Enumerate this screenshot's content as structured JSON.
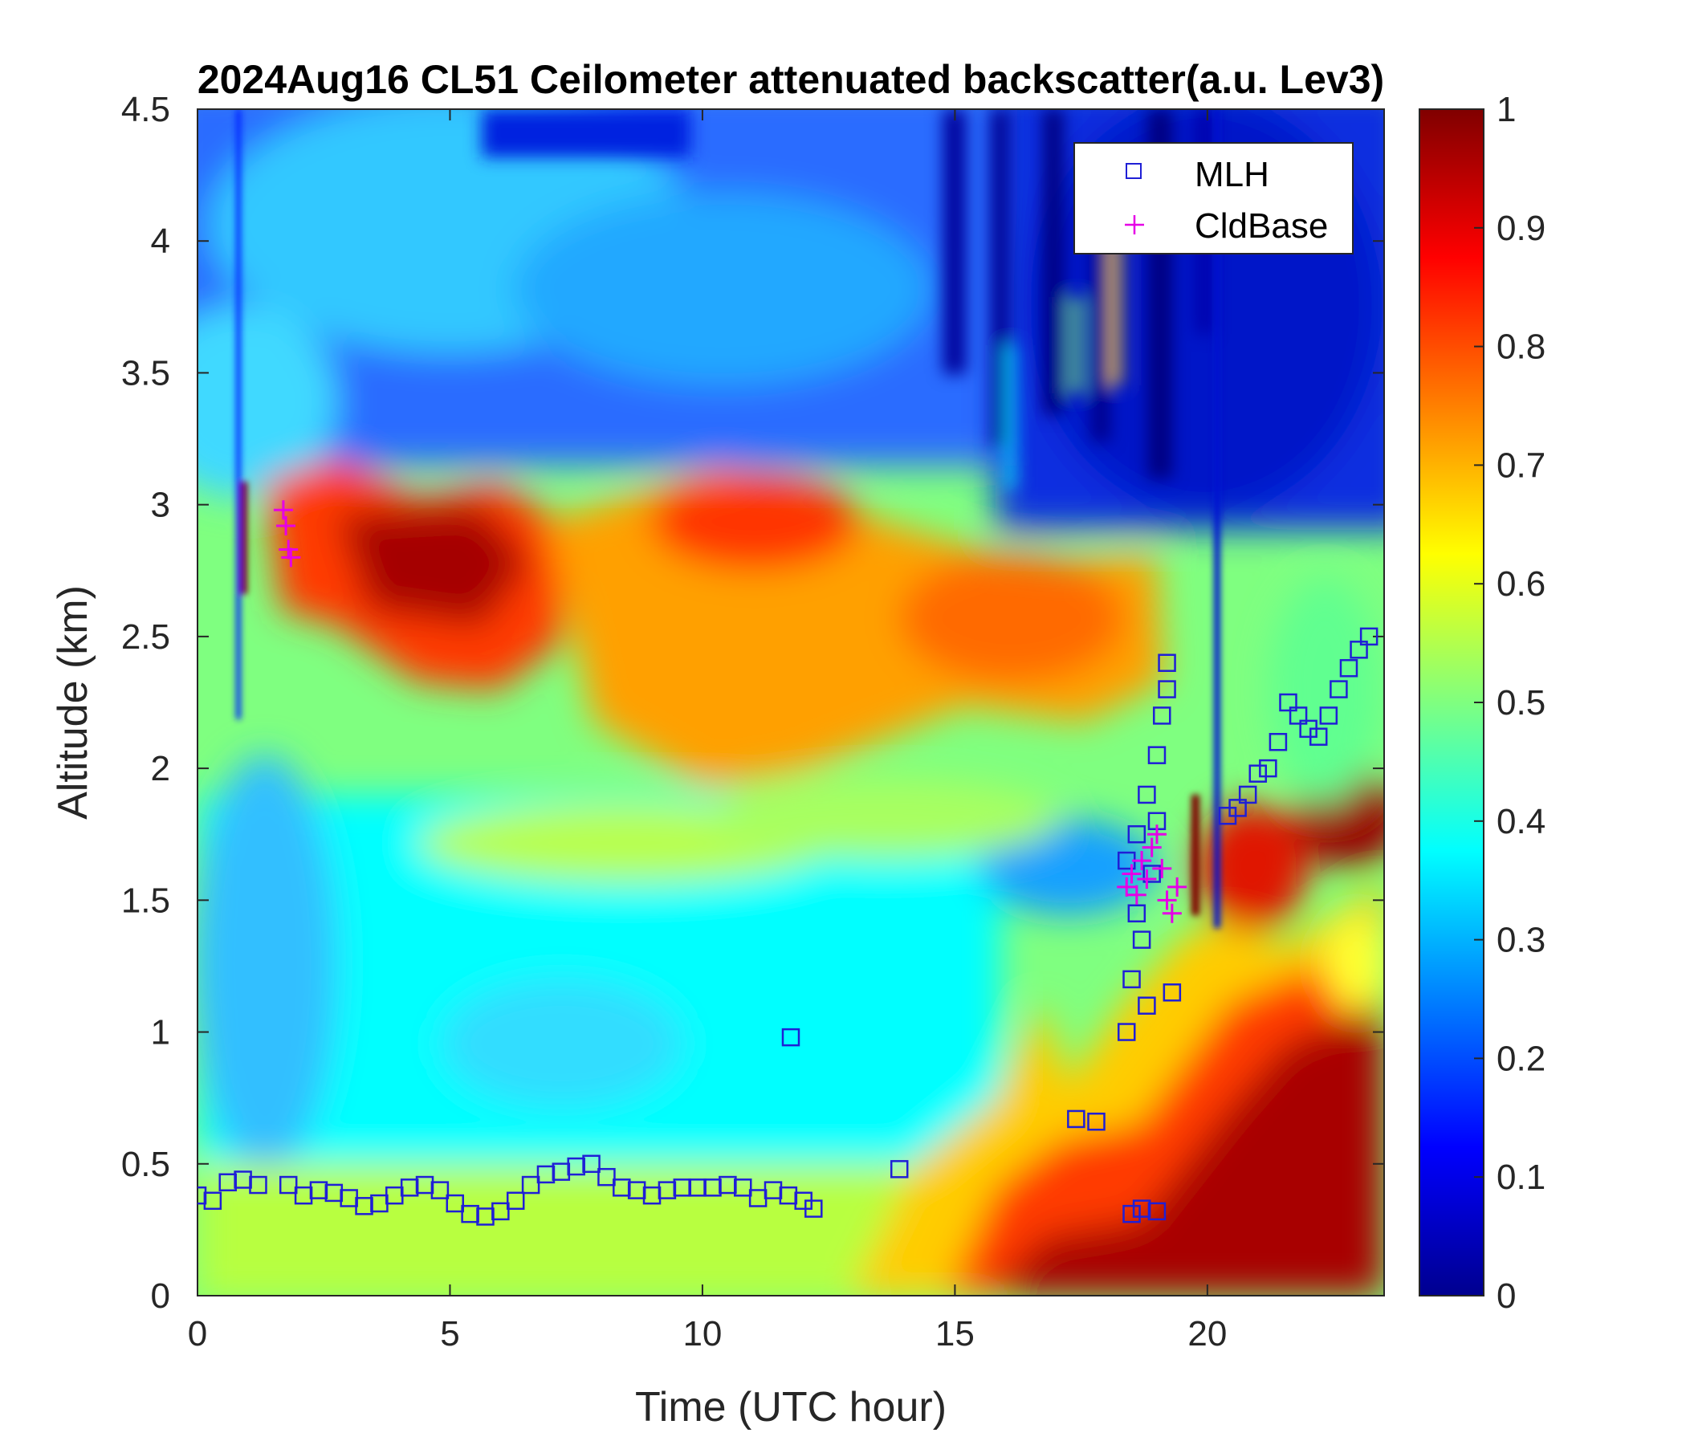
{
  "chart_data": {
    "type": "heatmap",
    "title": "2024Aug16 CL51 Ceilometer attenuated backscatter(a.u. Lev3)",
    "xlabel": "Time (UTC hour)",
    "ylabel": "Altitude (km)",
    "xlim": [
      0,
      23.5
    ],
    "ylim": [
      0,
      4.5
    ],
    "x_ticks": [
      "0",
      "5",
      "10",
      "15",
      "20"
    ],
    "x_tick_values": [
      0,
      5,
      10,
      15,
      20
    ],
    "y_ticks": [
      "0",
      "0.5",
      "1",
      "1.5",
      "2",
      "2.5",
      "3",
      "3.5",
      "4",
      "4.5"
    ],
    "y_tick_values": [
      0,
      0.5,
      1,
      1.5,
      2,
      2.5,
      3,
      3.5,
      4,
      4.5
    ],
    "colorbar": {
      "colormap": "jet",
      "range": [
        0,
        1
      ],
      "tick_labels": [
        "0",
        "0.1",
        "0.2",
        "0.3",
        "0.4",
        "0.5",
        "0.6",
        "0.7",
        "0.8",
        "0.9",
        "1"
      ],
      "tick_values": [
        0,
        0.1,
        0.2,
        0.3,
        0.4,
        0.5,
        0.6,
        0.7,
        0.8,
        0.9,
        1
      ]
    },
    "legend": {
      "position": "top-right",
      "entries": [
        {
          "label": "MLH",
          "marker": "square",
          "color": "#1f1fd6"
        },
        {
          "label": "CldBase",
          "marker": "plus",
          "color": "#e600e6"
        }
      ]
    },
    "series": [
      {
        "name": "MLH",
        "x": [
          0,
          0.3,
          0.6,
          0.9,
          1.2,
          1.8,
          2.1,
          2.4,
          2.7,
          3.0,
          3.3,
          3.6,
          3.9,
          4.2,
          4.5,
          4.8,
          5.1,
          5.4,
          5.7,
          6.0,
          6.3,
          6.6,
          6.9,
          7.2,
          7.5,
          7.8,
          8.1,
          8.4,
          8.7,
          9.0,
          9.3,
          9.6,
          9.9,
          10.2,
          10.5,
          10.8,
          11.1,
          11.4,
          11.7,
          12.0,
          12.2,
          11.75,
          13.9,
          17.4,
          17.8,
          18.5,
          18.7,
          19.0,
          18.4,
          18.5,
          18.6,
          18.7,
          18.8,
          18.9,
          19.0,
          19.1,
          19.2,
          19.3,
          18.4,
          18.6,
          18.8,
          19.0,
          19.2,
          20.4,
          20.6,
          20.8,
          21.0,
          21.2,
          21.4,
          21.6,
          21.8,
          22.0,
          22.2,
          22.4,
          22.6,
          22.8,
          23.0,
          23.2
        ],
        "y": [
          0.38,
          0.36,
          0.43,
          0.44,
          0.42,
          0.42,
          0.38,
          0.4,
          0.39,
          0.37,
          0.34,
          0.35,
          0.38,
          0.41,
          0.42,
          0.4,
          0.35,
          0.31,
          0.3,
          0.32,
          0.36,
          0.42,
          0.46,
          0.47,
          0.49,
          0.5,
          0.45,
          0.41,
          0.4,
          0.38,
          0.4,
          0.41,
          0.41,
          0.41,
          0.42,
          0.41,
          0.37,
          0.4,
          0.38,
          0.36,
          0.33,
          0.98,
          0.48,
          0.67,
          0.66,
          0.31,
          0.33,
          0.32,
          1.0,
          1.2,
          1.45,
          1.35,
          1.1,
          1.6,
          1.8,
          2.2,
          2.4,
          1.15,
          1.65,
          1.75,
          1.9,
          2.05,
          2.3,
          1.82,
          1.85,
          1.9,
          1.98,
          2.0,
          2.1,
          2.25,
          2.2,
          2.15,
          2.12,
          2.2,
          2.3,
          2.38,
          2.45,
          2.5
        ]
      },
      {
        "name": "CldBase",
        "x": [
          1.7,
          1.75,
          1.8,
          1.85,
          18.4,
          18.5,
          18.6,
          18.7,
          18.8,
          18.9,
          19.0,
          19.1,
          19.2,
          19.3,
          19.4
        ],
        "y": [
          2.98,
          2.92,
          2.83,
          2.8,
          1.55,
          1.6,
          1.52,
          1.65,
          1.58,
          1.7,
          1.75,
          1.62,
          1.5,
          1.45,
          1.55
        ]
      }
    ]
  }
}
